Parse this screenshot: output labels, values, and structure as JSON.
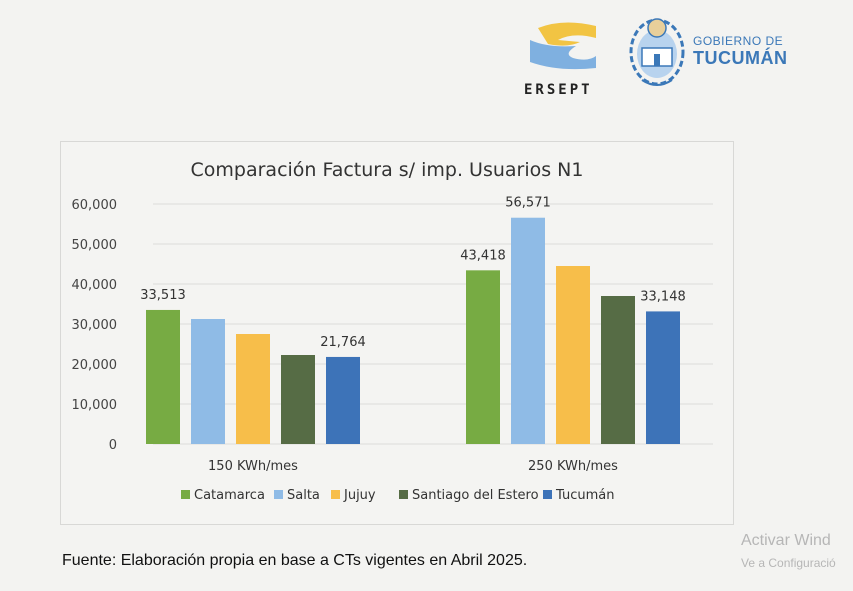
{
  "logos": {
    "ersept": "ERSEPT",
    "gov_line1": "GOBIERNO DE",
    "gov_line2": "TUCUMÁN"
  },
  "source_note": "Fuente: Elaboración propia en base a CTs vigentes en Abril 2025.",
  "watermark": {
    "line1": "Activar Wind",
    "line2": "Ve a Configuració"
  },
  "colors": {
    "Catamarca": "#77ab43",
    "Salta": "#8fbbe6",
    "Jujuy": "#f7be4a",
    "Santiago del Estero": "#566c45",
    "Tucumán": "#3d73b8"
  },
  "chart_data": {
    "type": "bar",
    "title": "Comparación Factura s/ imp. Usuarios N1",
    "xlabel": "",
    "ylabel": "",
    "ylim": [
      0,
      60000
    ],
    "yticks": [
      0,
      10000,
      20000,
      30000,
      40000,
      50000,
      60000
    ],
    "ytick_labels": [
      "0",
      "10,000",
      "20,000",
      "30,000",
      "40,000",
      "50,000",
      "60,000"
    ],
    "grid": true,
    "legend_position": "bottom",
    "categories": [
      "150 KWh/mes",
      "250 KWh/mes"
    ],
    "series": [
      {
        "name": "Catamarca",
        "values": [
          33513,
          43418
        ],
        "labels": [
          "33,513",
          "43,418"
        ]
      },
      {
        "name": "Salta",
        "values": [
          31250,
          56571
        ],
        "labels": [
          null,
          "56,571"
        ]
      },
      {
        "name": "Jujuy",
        "values": [
          27500,
          44500
        ],
        "labels": [
          null,
          null
        ]
      },
      {
        "name": "Santiago del Estero",
        "values": [
          22250,
          37000
        ],
        "labels": [
          null,
          null
        ]
      },
      {
        "name": "Tucumán",
        "values": [
          21764,
          33148
        ],
        "labels": [
          "21,764",
          "33,148"
        ]
      }
    ]
  }
}
